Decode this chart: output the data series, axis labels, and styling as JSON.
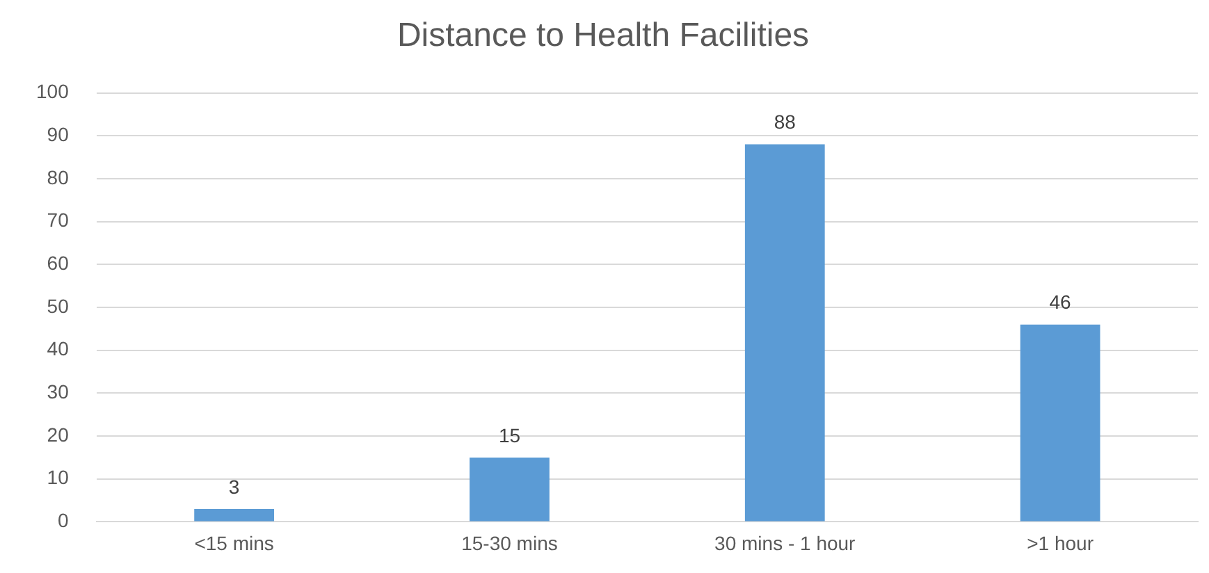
{
  "chart_data": {
    "type": "bar",
    "title": "Distance to Health Facilities",
    "categories": [
      "<15 mins",
      "15-30 mins",
      "30 mins - 1 hour",
      ">1 hour"
    ],
    "values": [
      3,
      15,
      88,
      46
    ],
    "color": "#5b9bd5",
    "ylim": [
      0,
      100
    ],
    "yticks": [
      0,
      10,
      20,
      30,
      40,
      50,
      60,
      70,
      80,
      90,
      100
    ],
    "grid": "y",
    "data_labels": true,
    "legend": false
  }
}
